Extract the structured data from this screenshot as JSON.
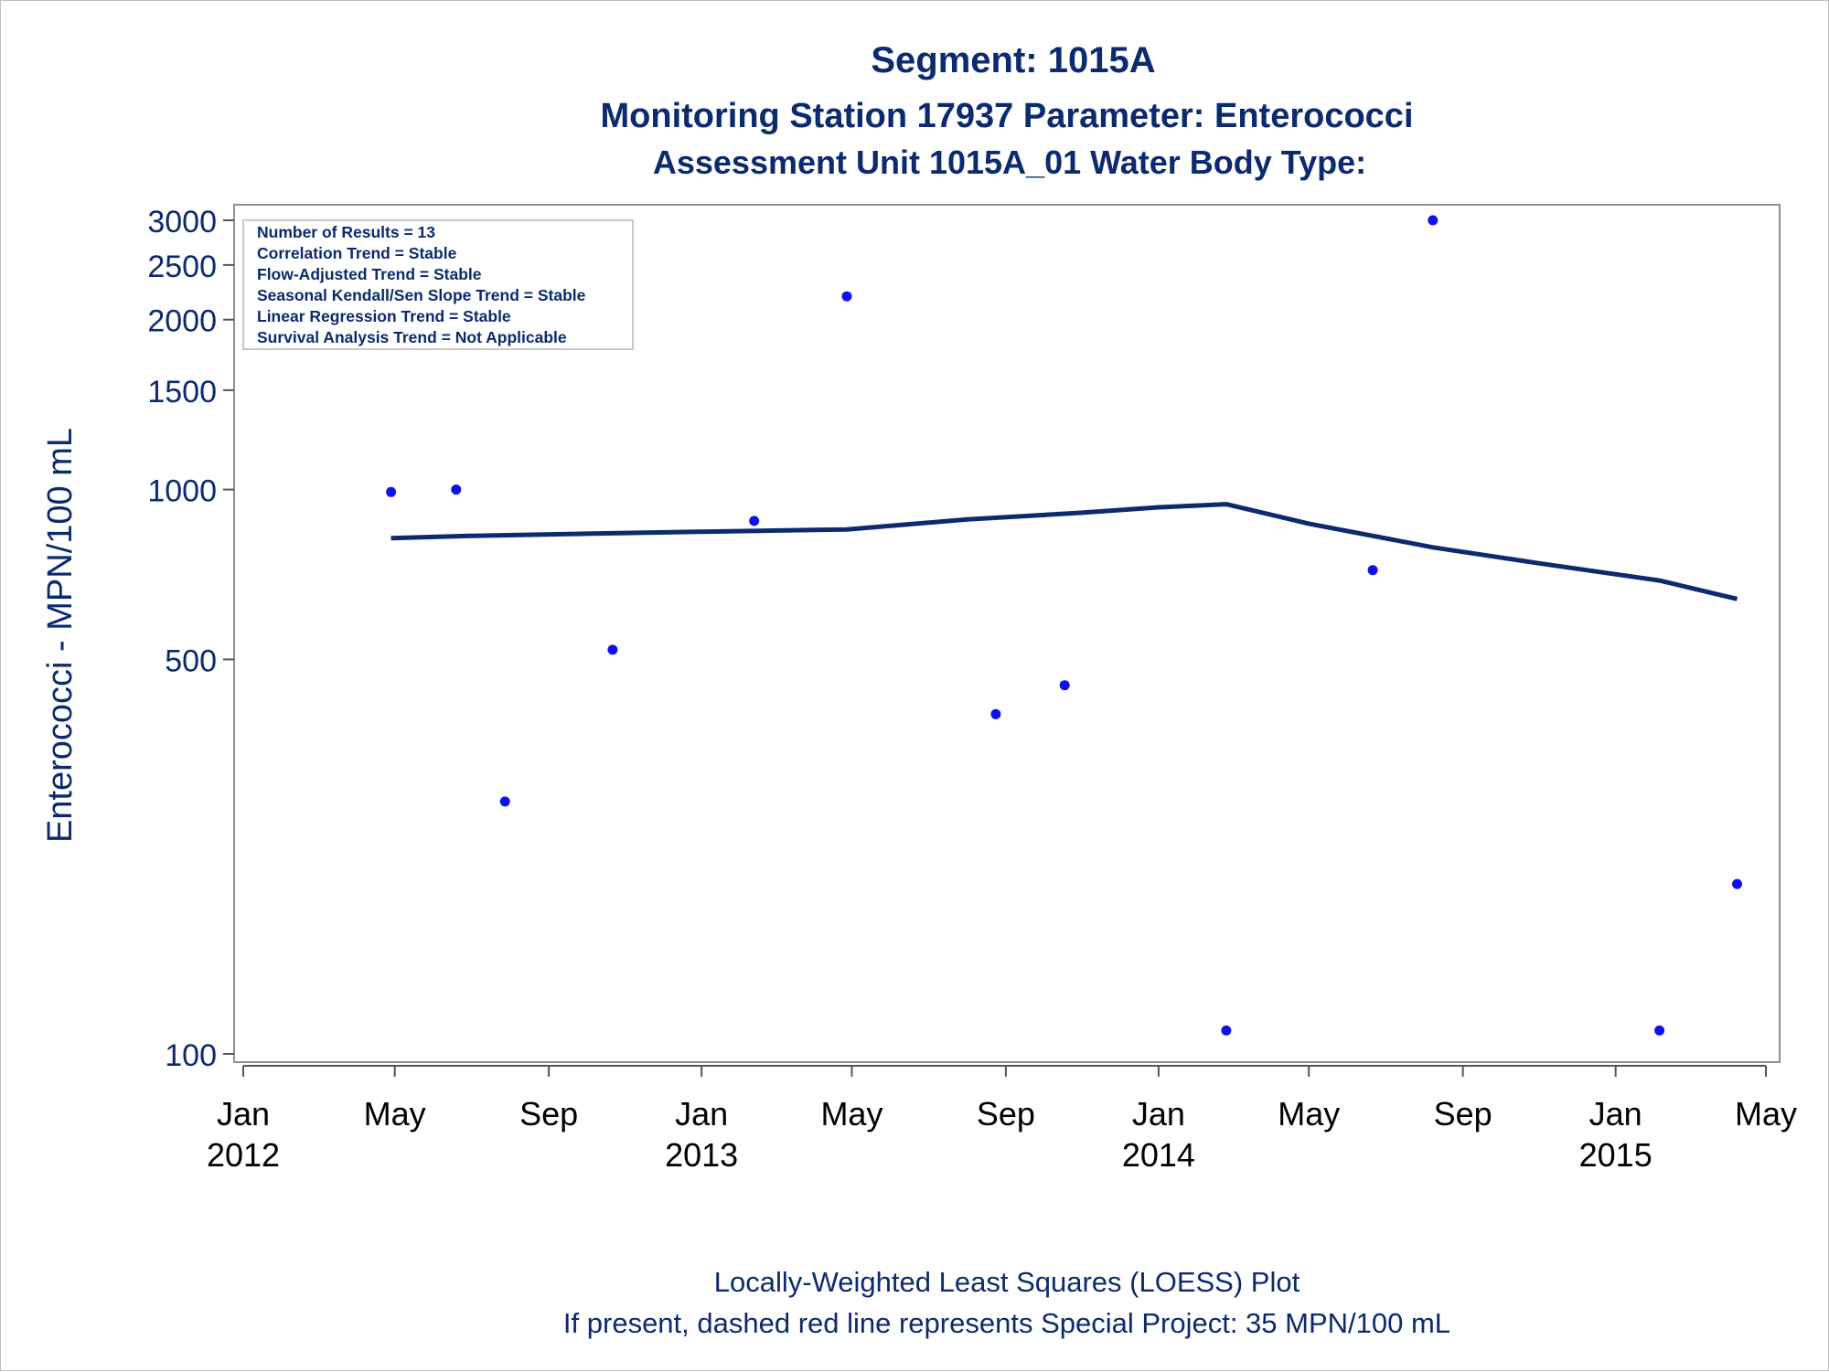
{
  "chart_data": {
    "type": "scatter",
    "title": "Segment: 1015A",
    "subtitle": "Monitoring Station 17937 Parameter: Enterococci",
    "subtitle2": "Assessment Unit 1015A_01   Water Body Type:",
    "ylabel": "Enterococci - MPN/100 mL",
    "yscale": "log",
    "ylim": [
      100,
      3000
    ],
    "yticks": [
      100,
      500,
      1000,
      1500,
      2000,
      2500,
      3000
    ],
    "xlim": [
      "2012-01-01",
      "2015-05-01"
    ],
    "xticks": [
      {
        "date": "2012-01-01",
        "label": "Jan",
        "year": "2012"
      },
      {
        "date": "2012-05-01",
        "label": "May",
        "year": ""
      },
      {
        "date": "2012-09-01",
        "label": "Sep",
        "year": ""
      },
      {
        "date": "2013-01-01",
        "label": "Jan",
        "year": "2013"
      },
      {
        "date": "2013-05-01",
        "label": "May",
        "year": ""
      },
      {
        "date": "2013-09-01",
        "label": "Sep",
        "year": ""
      },
      {
        "date": "2014-01-01",
        "label": "Jan",
        "year": "2014"
      },
      {
        "date": "2014-05-01",
        "label": "May",
        "year": ""
      },
      {
        "date": "2014-09-01",
        "label": "Sep",
        "year": ""
      },
      {
        "date": "2015-01-01",
        "label": "Jan",
        "year": "2015"
      },
      {
        "date": "2015-05-01",
        "label": "May",
        "year": ""
      }
    ],
    "points": [
      {
        "x": "2012-04-28",
        "y": 990
      },
      {
        "x": "2012-06-19",
        "y": 1000
      },
      {
        "x": "2012-07-28",
        "y": 280
      },
      {
        "x": "2012-10-22",
        "y": 520
      },
      {
        "x": "2013-02-12",
        "y": 880
      },
      {
        "x": "2013-04-27",
        "y": 2200
      },
      {
        "x": "2013-08-24",
        "y": 400
      },
      {
        "x": "2013-10-18",
        "y": 450
      },
      {
        "x": "2014-02-24",
        "y": 110
      },
      {
        "x": "2014-06-21",
        "y": 720
      },
      {
        "x": "2014-08-08",
        "y": 3000
      },
      {
        "x": "2015-02-05",
        "y": 110
      },
      {
        "x": "2015-04-08",
        "y": 200
      }
    ],
    "loess": [
      {
        "x": "2012-04-28",
        "y": 820
      },
      {
        "x": "2012-07-01",
        "y": 828
      },
      {
        "x": "2012-10-01",
        "y": 835
      },
      {
        "x": "2013-01-01",
        "y": 842
      },
      {
        "x": "2013-04-27",
        "y": 850
      },
      {
        "x": "2013-08-01",
        "y": 885
      },
      {
        "x": "2013-11-01",
        "y": 910
      },
      {
        "x": "2014-01-01",
        "y": 930
      },
      {
        "x": "2014-02-24",
        "y": 942
      },
      {
        "x": "2014-05-01",
        "y": 870
      },
      {
        "x": "2014-08-08",
        "y": 790
      },
      {
        "x": "2014-11-01",
        "y": 740
      },
      {
        "x": "2015-02-05",
        "y": 690
      },
      {
        "x": "2015-04-08",
        "y": 640
      }
    ],
    "colors": {
      "points": "#1010ee",
      "loess": "#0b2a6f"
    },
    "grid": false,
    "stats_box": [
      "Number of Results = 13",
      "Correlation Trend = Stable",
      "Flow-Adjusted Trend = Stable",
      "Seasonal Kendall/Sen Slope Trend = Stable",
      "Linear Regression Trend = Stable",
      "Survival Analysis Trend = Not Applicable"
    ],
    "footnotes": [
      "Locally-Weighted Least Squares (LOESS) Plot",
      "If present, dashed red line represents Special Project: 35 MPN/100 mL"
    ]
  }
}
